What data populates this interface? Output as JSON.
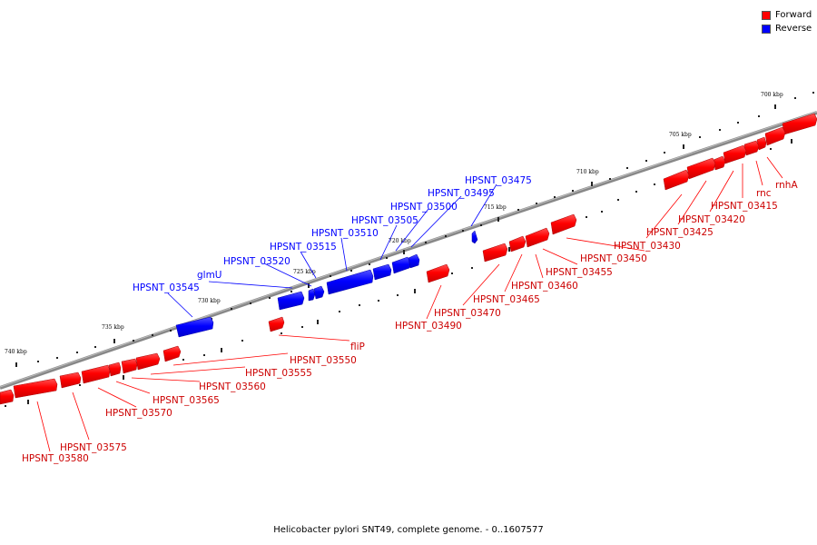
{
  "legend": {
    "forward": {
      "label": "Forward",
      "color": "#ff0000"
    },
    "reverse": {
      "label": "Reverse",
      "color": "#0000ff"
    }
  },
  "caption": "Helicobacter pylori SNT49, complete genome. - 0..1607577",
  "colors": {
    "forward": "#ff0000",
    "reverse": "#0000ff",
    "backbone": "#777777"
  },
  "ticks": [
    "700 kbp",
    "705 kbp",
    "710 kbp",
    "715 kbp",
    "720 kbp",
    "725 kbp",
    "730 kbp",
    "735 kbp",
    "740 kbp"
  ],
  "gene_labels": {
    "reverse": [
      "HPSNT_03475",
      "HPSNT_03495",
      "HPSNT_03500",
      "HPSNT_03505",
      "HPSNT_03510",
      "HPSNT_03515",
      "HPSNT_03520",
      "glmU",
      "HPSNT_03545"
    ],
    "forward": [
      "rnhA",
      "rnc",
      "HPSNT_03415",
      "HPSNT_03420",
      "HPSNT_03425",
      "HPSNT_03430",
      "HPSNT_03450",
      "HPSNT_03455",
      "HPSNT_03460",
      "HPSNT_03465",
      "HPSNT_03470",
      "HPSNT_03490",
      "fliP",
      "HPSNT_03550",
      "HPSNT_03555",
      "HPSNT_03560",
      "HPSNT_03565",
      "HPSNT_03570",
      "HPSNT_03575",
      "HPSNT_03580"
    ]
  }
}
